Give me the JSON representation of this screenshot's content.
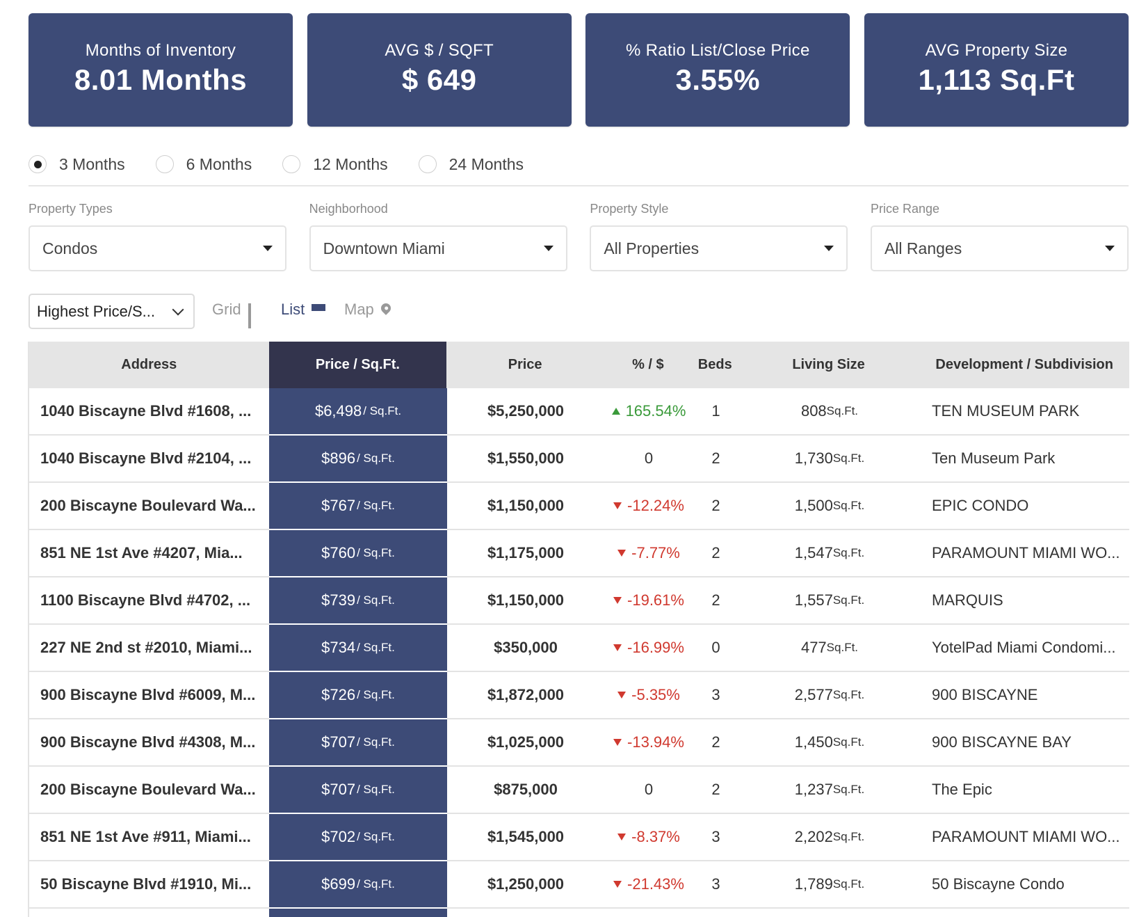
{
  "stats": [
    {
      "title": "Months of Inventory",
      "value": "8.01 Months"
    },
    {
      "title": "AVG $ / SQFT",
      "value": "$ 649"
    },
    {
      "title": "% Ratio List/Close Price",
      "value": "3.55%"
    },
    {
      "title": "AVG Property Size",
      "value": "1,113 Sq.Ft"
    }
  ],
  "periods": [
    {
      "label": "3 Months",
      "checked": true
    },
    {
      "label": "6 Months",
      "checked": false
    },
    {
      "label": "12 Months",
      "checked": false
    },
    {
      "label": "24 Months",
      "checked": false
    }
  ],
  "filters": [
    {
      "label": "Property Types",
      "value": "Condos"
    },
    {
      "label": "Neighborhood",
      "value": "Downtown Miami"
    },
    {
      "label": "Property Style",
      "value": "All Properties"
    },
    {
      "label": "Price Range",
      "value": "All Ranges"
    }
  ],
  "sort": {
    "value": "Highest Price/S..."
  },
  "views": {
    "grid": "Grid",
    "list": "List",
    "map": "Map",
    "active": "list"
  },
  "table": {
    "headers": {
      "address": "Address",
      "price_sqft": "Price / Sq.Ft.",
      "price": "Price",
      "pct": "% / $",
      "beds": "Beds",
      "living_size": "Living Size",
      "development": "Development / Subdivision"
    },
    "sqft_unit": "/ Sq.Ft.",
    "size_unit": "Sq.Ft.",
    "rows": [
      {
        "address": "1040 Biscayne Blvd #1608, ...",
        "price_sqft": "$6,498",
        "price": "$5,250,000",
        "pct": "165.54%",
        "trend": "up",
        "beds": "1",
        "size": "808",
        "development": "TEN MUSEUM PARK"
      },
      {
        "address": "1040 Biscayne Blvd #2104, ...",
        "price_sqft": "$896",
        "price": "$1,550,000",
        "pct": "0",
        "trend": "none",
        "beds": "2",
        "size": "1,730",
        "development": "Ten Museum Park"
      },
      {
        "address": "200 Biscayne Boulevard Wa...",
        "price_sqft": "$767",
        "price": "$1,150,000",
        "pct": "-12.24%",
        "trend": "down",
        "beds": "2",
        "size": "1,500",
        "development": "EPIC CONDO"
      },
      {
        "address": "851 NE 1st Ave #4207, Mia...",
        "price_sqft": "$760",
        "price": "$1,175,000",
        "pct": "-7.77%",
        "trend": "down",
        "beds": "2",
        "size": "1,547",
        "development": "PARAMOUNT MIAMI WO..."
      },
      {
        "address": "1100 Biscayne Blvd #4702, ...",
        "price_sqft": "$739",
        "price": "$1,150,000",
        "pct": "-19.61%",
        "trend": "down",
        "beds": "2",
        "size": "1,557",
        "development": "MARQUIS"
      },
      {
        "address": "227 NE 2nd st #2010, Miami...",
        "price_sqft": "$734",
        "price": "$350,000",
        "pct": "-16.99%",
        "trend": "down",
        "beds": "0",
        "size": "477",
        "development": "YotelPad Miami Condomi..."
      },
      {
        "address": "900 Biscayne Blvd #6009, M...",
        "price_sqft": "$726",
        "price": "$1,872,000",
        "pct": "-5.35%",
        "trend": "down",
        "beds": "3",
        "size": "2,577",
        "development": "900 BISCAYNE"
      },
      {
        "address": "900 Biscayne Blvd #4308, M...",
        "price_sqft": "$707",
        "price": "$1,025,000",
        "pct": "-13.94%",
        "trend": "down",
        "beds": "2",
        "size": "1,450",
        "development": "900 BISCAYNE BAY"
      },
      {
        "address": "200 Biscayne Boulevard Wa...",
        "price_sqft": "$707",
        "price": "$875,000",
        "pct": "0",
        "trend": "none",
        "beds": "2",
        "size": "1,237",
        "development": "The Epic"
      },
      {
        "address": "851 NE 1st Ave #911, Miami...",
        "price_sqft": "$702",
        "price": "$1,545,000",
        "pct": "-8.37%",
        "trend": "down",
        "beds": "3",
        "size": "2,202",
        "development": "PARAMOUNT MIAMI WO..."
      },
      {
        "address": "50 Biscayne Blvd #1910, Mi...",
        "price_sqft": "$699",
        "price": "$1,250,000",
        "pct": "-21.43%",
        "trend": "down",
        "beds": "3",
        "size": "1,789",
        "development": "50 Biscayne Condo"
      }
    ]
  },
  "colors": {
    "card": "#3d4b77",
    "header_active": "#33344d",
    "up": "#3a9a3a",
    "down": "#d0392f"
  }
}
